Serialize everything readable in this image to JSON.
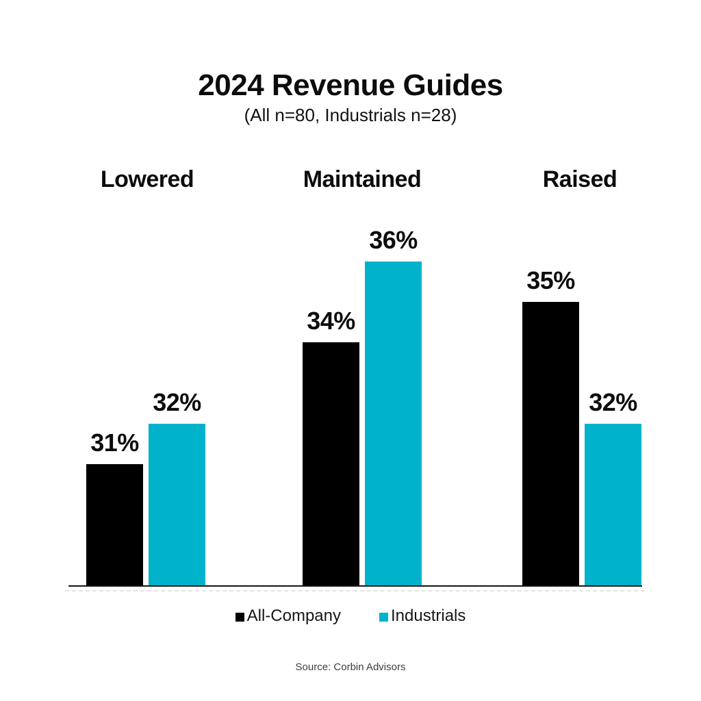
{
  "header": {
    "title": "2024 Revenue Guides",
    "subtitle": "(All n=80, Industrials n=28)"
  },
  "chart_data": {
    "type": "bar",
    "title": "2024 Revenue Guides",
    "subtitle": "(All n=80, Industrials n=28)",
    "categories": [
      "Lowered",
      "Maintained",
      "Raised"
    ],
    "series": [
      {
        "name": "All-Company",
        "color": "#000000",
        "values": [
          31,
          34,
          35
        ]
      },
      {
        "name": "Industrials",
        "color": "#00B3CB",
        "values": [
          32,
          36,
          32
        ]
      }
    ],
    "value_suffix": "%",
    "value_labels": true,
    "xlabel": "",
    "ylabel": "",
    "ylim": [
      28,
      37
    ],
    "grid": false,
    "legend_position": "bottom"
  },
  "legend": {
    "items": [
      {
        "label": "All-Company",
        "color": "#000000"
      },
      {
        "label": "Industrials",
        "color": "#00B3CB"
      }
    ]
  },
  "footer": {
    "source": "Source: Corbin Advisors"
  }
}
